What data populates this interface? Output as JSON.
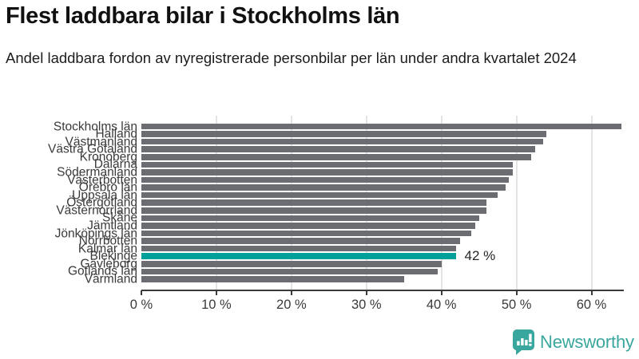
{
  "header": {
    "title": "Flest laddbara bilar i Stockholms län",
    "subtitle": "Andel laddbara fordon av nyregistrerade personbilar per län under andra kvartalet 2024"
  },
  "chart_data": {
    "type": "bar",
    "orientation": "horizontal",
    "title": "Flest laddbara bilar i Stockholms län",
    "subtitle": "Andel laddbara fordon av nyregistrerade personbilar per län under andra kvartalet 2024",
    "unit": "%",
    "categories": [
      "Stockholms län",
      "Halland",
      "Västmanland",
      "Västra Götaland",
      "Kronoberg",
      "Dalarna",
      "Södermanland",
      "Västerbotten",
      "Örebro län",
      "Uppsala län",
      "Östergötland",
      "Västernorrland",
      "Skåne",
      "Jämtland",
      "Jönköpings län",
      "Norrbotten",
      "Kalmar län",
      "Blekinge",
      "Gävleborg",
      "Gotlands län",
      "Värmland"
    ],
    "values": [
      64,
      54,
      53.5,
      52.5,
      52,
      49.5,
      49.5,
      49,
      48.5,
      47.5,
      46,
      46,
      45,
      44.5,
      44,
      42.5,
      42,
      42,
      40,
      39.5,
      35
    ],
    "xlim": [
      0,
      64.2
    ],
    "xtick_values": [
      0,
      10,
      20,
      30,
      40,
      50,
      60
    ],
    "xtick_labels": [
      "0 %",
      "10 %",
      "20 %",
      "30 %",
      "40 %",
      "50 %",
      "60 %"
    ],
    "grid": "vertical",
    "legend": "none",
    "bar_color": "#6c6c73",
    "highlight": {
      "category": "Blekinge",
      "color": "#00a09a",
      "annotation": "42 %"
    }
  },
  "footer": {
    "brand": "Newsworthy",
    "brand_color": "#3aa79e"
  }
}
